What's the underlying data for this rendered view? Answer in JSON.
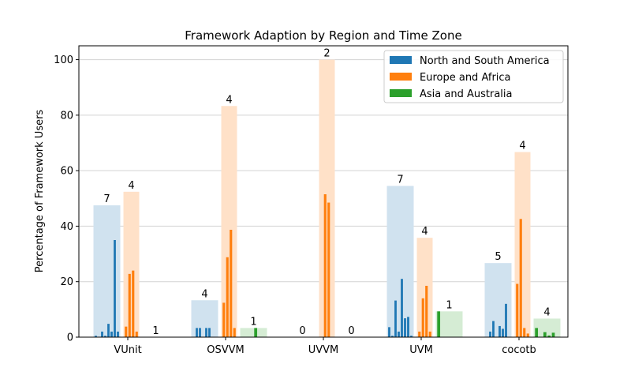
{
  "chart_data": {
    "type": "bar",
    "title": "Framework Adaption by Region and Time Zone",
    "xlabel": "",
    "ylabel": "Percentage of Framework Users",
    "ylim": [
      0,
      105
    ],
    "yticks": [
      0,
      20,
      40,
      60,
      80,
      100
    ],
    "grid": "y",
    "legend_position": "top-right",
    "categories": [
      "VUnit",
      "OSVVM",
      "UVVM",
      "UVM",
      "cocotb"
    ],
    "series": [
      {
        "name": "North and South America",
        "color": "#1f77b4",
        "shade_color": "#d0e2ef",
        "totals": [
          47.5,
          13.3,
          0,
          54.5,
          26.7
        ],
        "counts": [
          "7",
          "4",
          "0",
          "7",
          "5"
        ],
        "timezones": [
          [
            0.5,
            0,
            2,
            0.5,
            4.8,
            2,
            35,
            2
          ],
          [
            0,
            3.3,
            3.3,
            0,
            3.3,
            3.3,
            0,
            0
          ],
          [
            0,
            0,
            0,
            0,
            0,
            0,
            0,
            0
          ],
          [
            3.6,
            0.5,
            13.2,
            2,
            21,
            6.8,
            7.3,
            0.5
          ],
          [
            0,
            2,
            5.8,
            0,
            4,
            3,
            12,
            0
          ]
        ]
      },
      {
        "name": "Europe and Africa",
        "color": "#ff7f0e",
        "shade_color": "#ffe1c8",
        "totals": [
          52.4,
          83.3,
          100,
          35.8,
          66.7
        ],
        "counts": [
          "4",
          "4",
          "2",
          "4",
          "4"
        ],
        "timezones": [
          [
            3.8,
            22.8,
            24,
            2
          ],
          [
            12.4,
            28.8,
            38.7,
            3.3
          ],
          [
            0,
            51.5,
            48.5,
            0
          ],
          [
            2,
            14,
            18.5,
            2
          ],
          [
            19.2,
            42.6,
            3.3,
            1.3
          ]
        ]
      },
      {
        "name": "Asia and Australia",
        "color": "#2ca02c",
        "shade_color": "#d5ecd4",
        "totals": [
          0,
          3.3,
          0,
          9.3,
          6.7
        ],
        "counts": [
          "1",
          "1",
          "0",
          "1",
          "4"
        ],
        "timezones": [
          [
            0,
            0,
            0,
            0,
            0,
            0
          ],
          [
            0,
            0,
            0,
            3.3,
            0,
            0
          ],
          [
            0,
            0,
            0,
            0,
            0,
            0
          ],
          [
            9.3,
            0,
            0,
            0,
            0,
            0
          ],
          [
            3.3,
            0,
            1.8,
            0.6,
            1.6,
            0
          ]
        ]
      }
    ]
  }
}
